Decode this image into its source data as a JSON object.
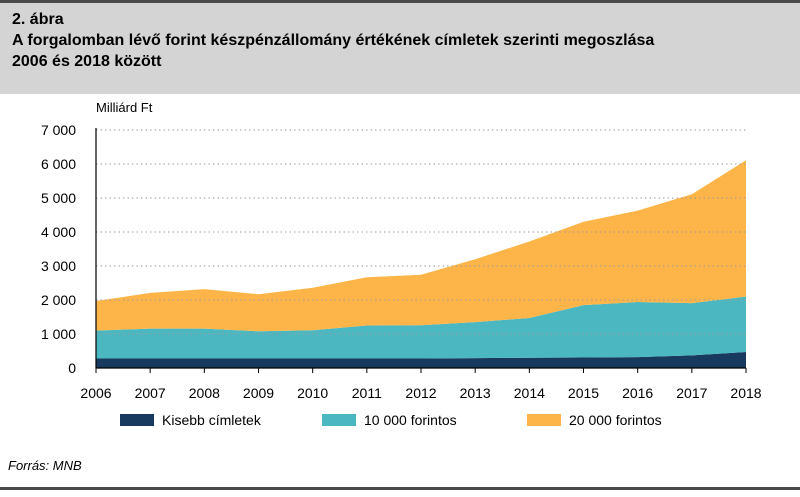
{
  "figure": {
    "label": "2. ábra",
    "title_line1": "A forgalomban lévő forint készpénzállomány értékének címletek szerinti megoszlása",
    "title_line2": "2006 és 2018 között"
  },
  "source": "Forrás: MNB",
  "chart_data": {
    "type": "area",
    "stacked": true,
    "unit_label": "Milliárd Ft",
    "x": [
      "2006",
      "2007",
      "2008",
      "2009",
      "2010",
      "2011",
      "2012",
      "2013",
      "2014",
      "2015",
      "2016",
      "2017",
      "2018"
    ],
    "ylim": [
      0,
      7000
    ],
    "yticks": [
      0,
      1000,
      2000,
      3000,
      4000,
      5000,
      6000,
      7000
    ],
    "ytick_labels": [
      "0",
      "1 000",
      "2 000",
      "3 000",
      "4 000",
      "5 000",
      "6 000",
      "7 000"
    ],
    "grid": "horizontal-dotted",
    "legend_position": "bottom",
    "series": [
      {
        "name": "Kisebb címletek",
        "color": "#173a5e",
        "values": [
          280,
          280,
          280,
          280,
          280,
          280,
          280,
          290,
          300,
          310,
          320,
          370,
          470
        ]
      },
      {
        "name": "10 000 forintos",
        "color": "#4bb7c1",
        "values": [
          820,
          880,
          880,
          800,
          830,
          970,
          980,
          1060,
          1170,
          1540,
          1620,
          1540,
          1630
        ]
      },
      {
        "name": "20 000 forintos",
        "color": "#fdb54a",
        "values": [
          870,
          1050,
          1160,
          1090,
          1250,
          1420,
          1480,
          1850,
          2250,
          2450,
          2690,
          3200,
          4010
        ]
      }
    ]
  }
}
